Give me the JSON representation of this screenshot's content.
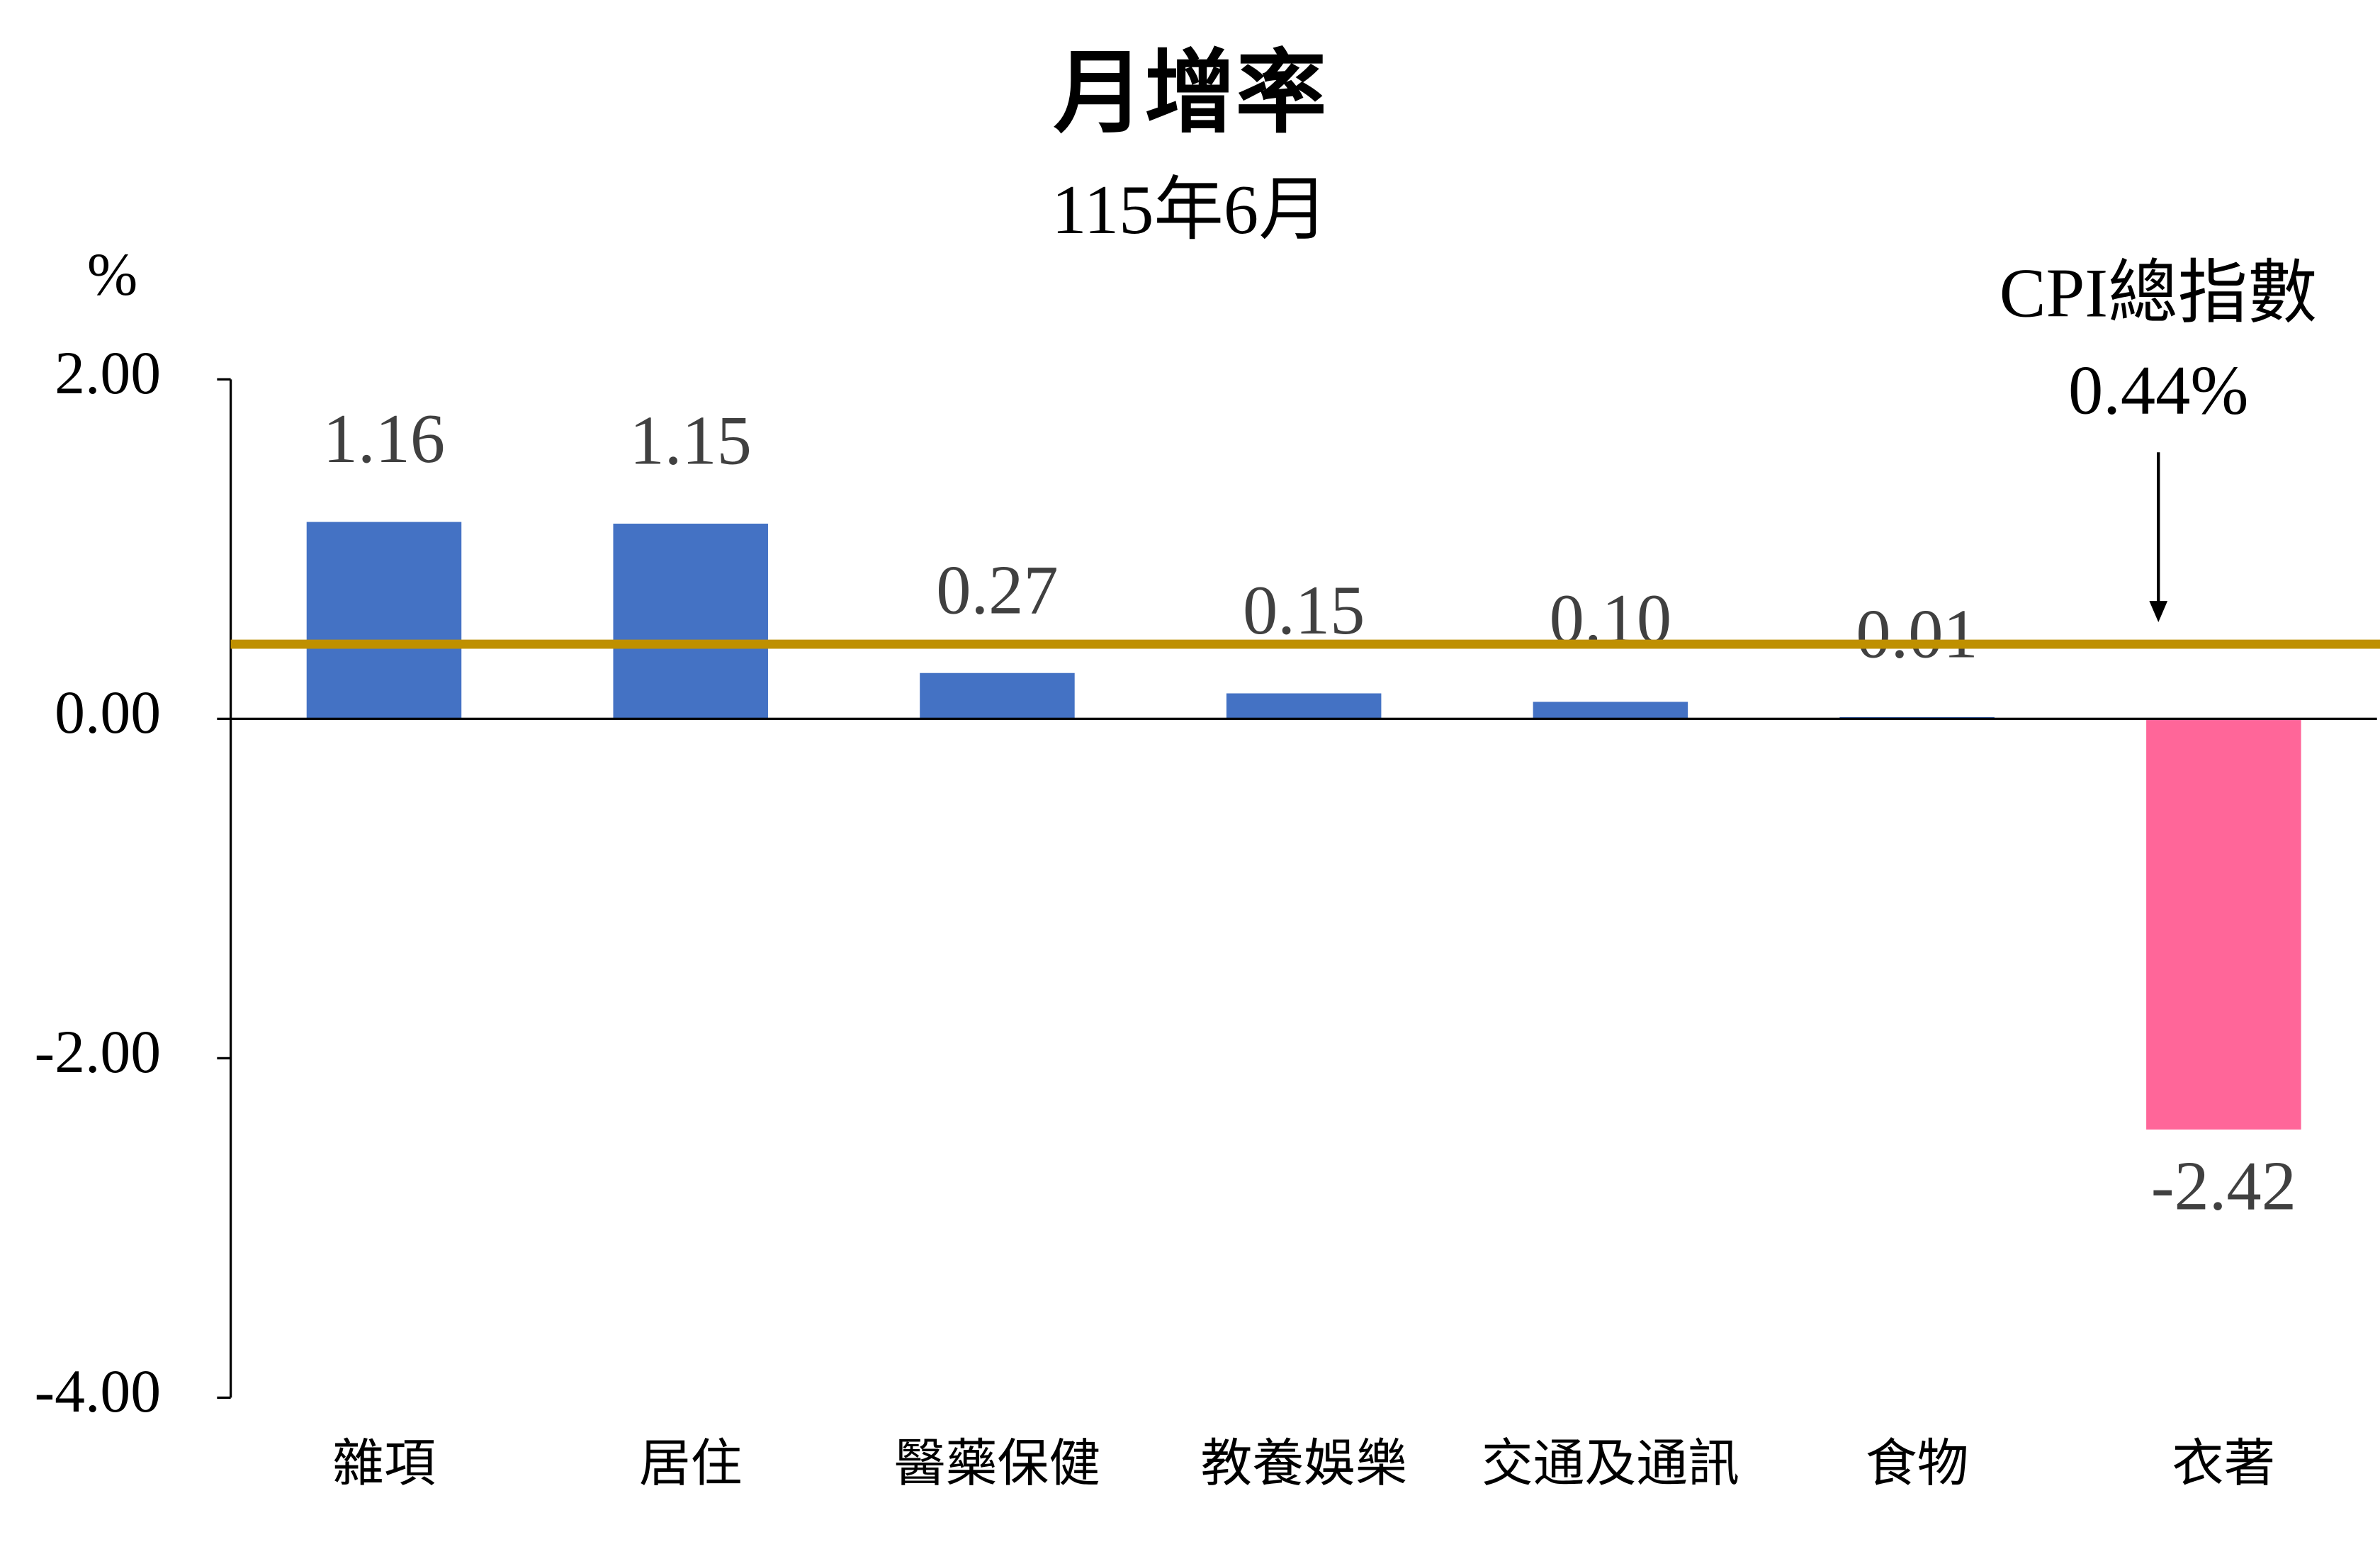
{
  "chart_data": {
    "type": "bar",
    "title": "月增率",
    "subtitle": "115年6月",
    "y_label": "%",
    "categories": [
      "雜項",
      "居住",
      "醫藥保健",
      "教養娛樂",
      "交通及通訊",
      "食物",
      "衣著"
    ],
    "values": [
      1.16,
      1.15,
      0.27,
      0.15,
      0.1,
      0.01,
      -2.42
    ],
    "value_labels": [
      "1.16",
      "1.15",
      "0.27",
      "0.15",
      "0.10",
      "0.01",
      "-2.42"
    ],
    "colors": [
      "#4472c4",
      "#4472c4",
      "#4472c4",
      "#4472c4",
      "#4472c4",
      "#4472c4",
      "#ff6699"
    ],
    "ylim": [
      -4,
      2
    ],
    "yticks": [
      {
        "value": -4,
        "label": "-4.00"
      },
      {
        "value": -2,
        "label": "-2.00"
      },
      {
        "value": 0,
        "label": "0.00"
      },
      {
        "value": 2,
        "label": "2.00"
      }
    ],
    "reference": {
      "label": "CPI總指數",
      "value": 0.44,
      "value_label": "0.44%",
      "color": "#bf9000"
    }
  }
}
